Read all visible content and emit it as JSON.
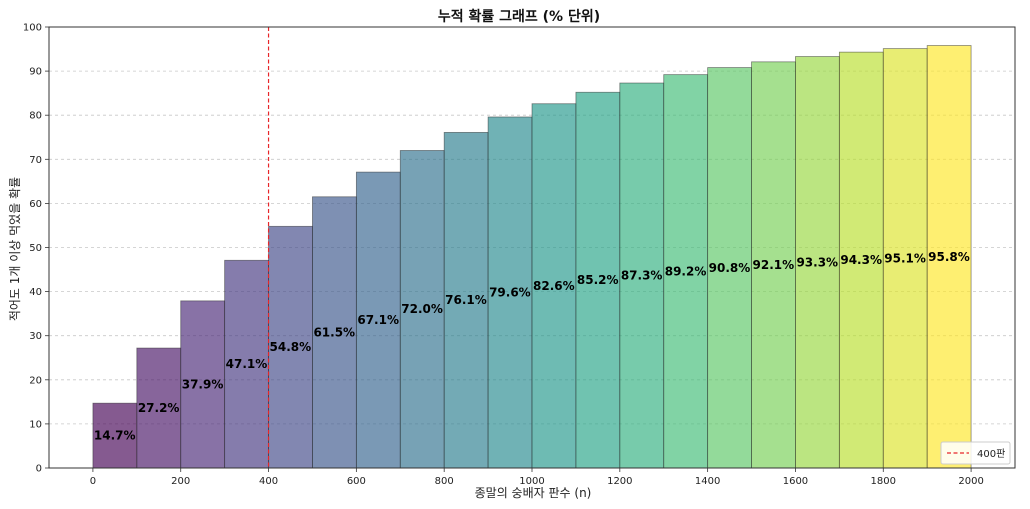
{
  "chart_data": {
    "type": "bar",
    "title": "누적 확률 그래프 (% 단위)",
    "xlabel": "종말의 숭배자 판수 (n)",
    "ylabel": "적어도 1개 이상 먹었을 확률",
    "xlim": [
      -100,
      2100
    ],
    "ylim": [
      0,
      100
    ],
    "xticks": [
      0,
      200,
      400,
      600,
      800,
      1000,
      1200,
      1400,
      1600,
      1800,
      2000
    ],
    "yticks": [
      0,
      10,
      20,
      30,
      40,
      50,
      60,
      70,
      80,
      90,
      100
    ],
    "bar_width": 100,
    "x": [
      0,
      100,
      200,
      300,
      400,
      500,
      600,
      700,
      800,
      900,
      1000,
      1100,
      1200,
      1300,
      1400,
      1500,
      1600,
      1700,
      1800,
      1900
    ],
    "values": [
      14.7,
      27.2,
      37.9,
      47.1,
      54.8,
      61.5,
      67.1,
      72.0,
      76.1,
      79.6,
      82.6,
      85.2,
      87.3,
      89.2,
      90.8,
      92.1,
      93.3,
      94.3,
      95.1,
      95.8
    ],
    "labels": [
      "14.7%",
      "27.2%",
      "37.9%",
      "47.1%",
      "54.8%",
      "61.5%",
      "67.1%",
      "72.0%",
      "76.1%",
      "79.6%",
      "82.6%",
      "85.2%",
      "87.3%",
      "89.2%",
      "90.8%",
      "92.1%",
      "93.3%",
      "94.3%",
      "95.1%",
      "95.8%"
    ],
    "colormap": "viridis",
    "reference_line": {
      "x": 400,
      "label": "400판",
      "color": "#e8262a",
      "style": "dashed"
    },
    "grid": "horizontal dashed",
    "legend_position": "bottom-right"
  }
}
